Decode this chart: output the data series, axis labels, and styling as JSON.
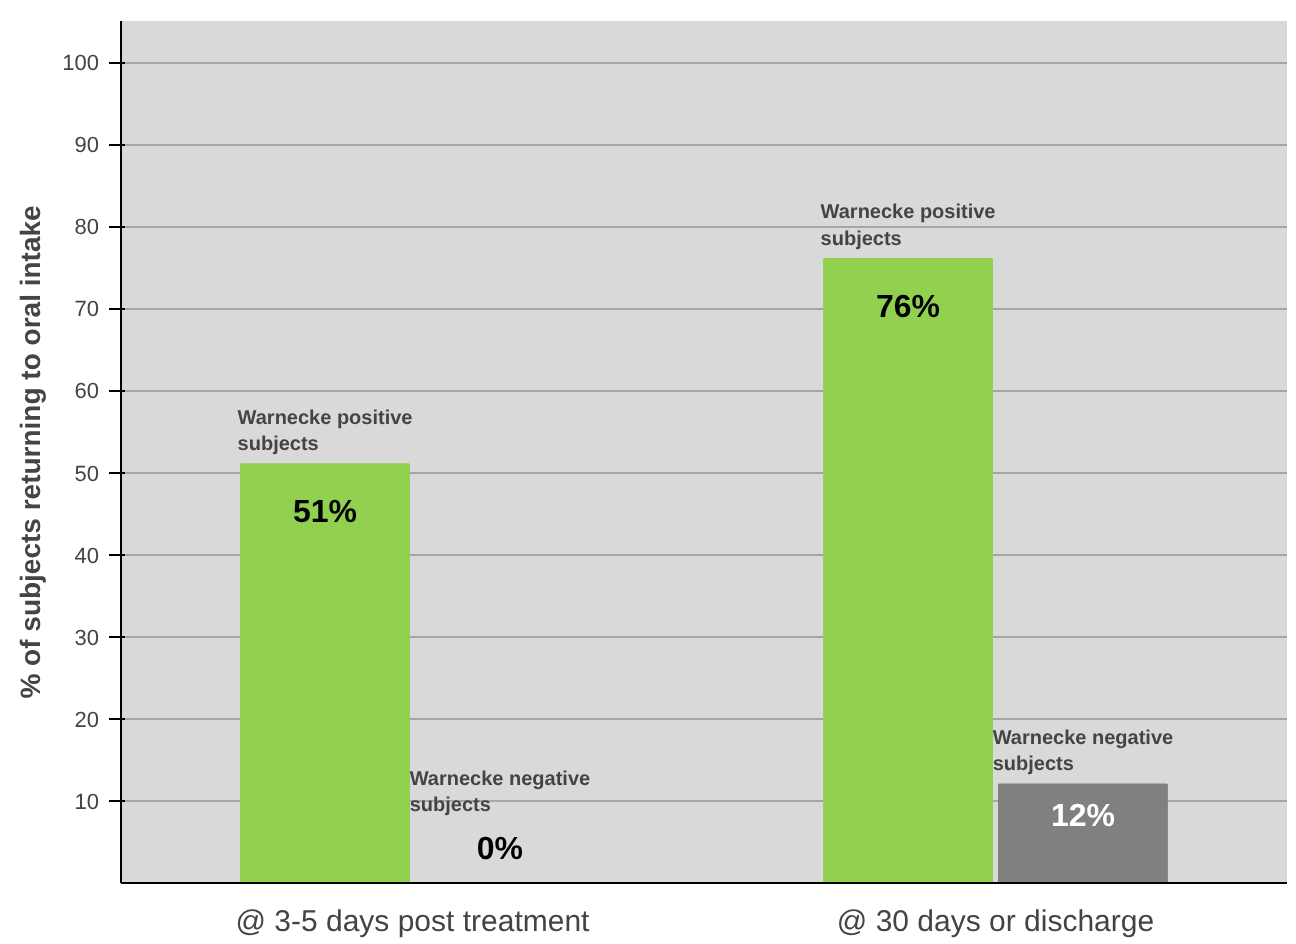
{
  "chart_data": {
    "type": "bar",
    "ylabel": "% of subjects returning to oral intake",
    "categories": [
      "@ 3-5 days post treatment",
      "@ 30 days or discharge"
    ],
    "series": [
      {
        "name": "Warnecke positive subjects",
        "color": "#92d050",
        "values": [
          51,
          76
        ],
        "value_labels": [
          "51%",
          "76%"
        ]
      },
      {
        "name": "Warnecke negative subjects",
        "color": "#808080",
        "values": [
          0,
          12
        ],
        "value_labels": [
          "0%",
          "12%"
        ]
      }
    ],
    "ylim": [
      0,
      105
    ],
    "yticks": [
      10,
      20,
      30,
      40,
      50,
      60,
      70,
      80,
      90,
      100
    ],
    "grid": "y"
  }
}
